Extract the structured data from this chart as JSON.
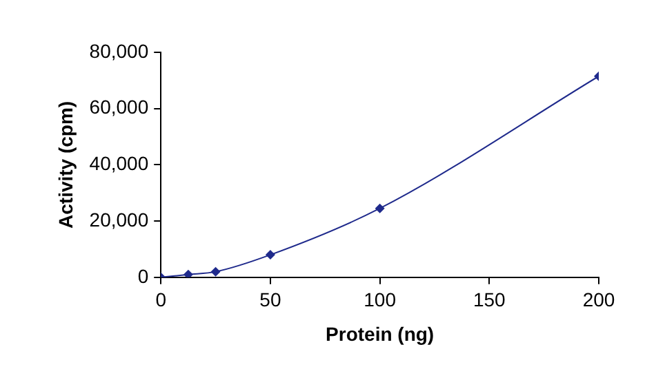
{
  "chart_data": {
    "type": "line",
    "xlabel": "Protein (ng)",
    "ylabel": "Activity (cpm)",
    "x": [
      0,
      12.5,
      25,
      50,
      100,
      200
    ],
    "series": [
      {
        "color": "#1f2a8c",
        "values": [
          0,
          1000,
          2000,
          8000,
          24500,
          71500
        ]
      }
    ],
    "xlim": [
      0,
      200
    ],
    "xticks": [
      0,
      50,
      100,
      150,
      200
    ],
    "ylim": [
      0,
      80000
    ],
    "yticks": [
      0,
      {
        "value": 20000,
        "label": "20,000"
      },
      {
        "value": 40000,
        "label": "40,000"
      },
      {
        "value": 60000,
        "label": "60,000"
      },
      {
        "value": 80000,
        "label": "80,000"
      }
    ],
    "grid": false,
    "legend": false,
    "marker": "diamond",
    "line_style": "solid"
  }
}
